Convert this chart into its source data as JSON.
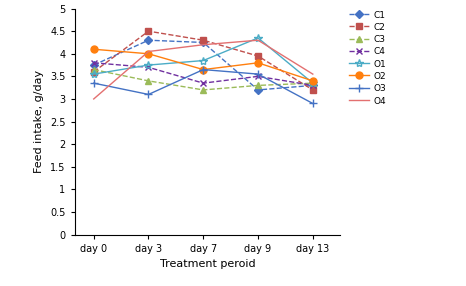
{
  "x_labels": [
    "day 0",
    "day 3",
    "day 7",
    "day 9",
    "day 13"
  ],
  "x_positions": [
    0,
    1,
    2,
    3,
    4
  ],
  "series_order": [
    "C1",
    "C2",
    "C3",
    "C4",
    "O1",
    "O2",
    "O3",
    "O4"
  ],
  "series": {
    "C1": {
      "values": [
        3.75,
        4.3,
        4.25,
        3.2,
        3.3
      ],
      "color": "#4472C4",
      "linestyle": "--",
      "marker": "D",
      "markersize": 4
    },
    "C2": {
      "values": [
        3.6,
        4.5,
        4.3,
        3.95,
        3.2
      ],
      "color": "#C0504D",
      "linestyle": "--",
      "marker": "s",
      "markersize": 4
    },
    "C3": {
      "values": [
        3.65,
        3.4,
        3.2,
        3.3,
        3.35
      ],
      "color": "#9BBB59",
      "linestyle": "--",
      "marker": "^",
      "markersize": 4
    },
    "C4": {
      "values": [
        3.8,
        3.7,
        3.35,
        3.5,
        3.3
      ],
      "color": "#7030A0",
      "linestyle": "--",
      "marker": "x",
      "markersize": 4
    },
    "O1": {
      "values": [
        3.55,
        3.75,
        3.85,
        4.35,
        3.35
      ],
      "color": "#4BACC6",
      "linestyle": "-",
      "marker": "*",
      "markersize": 6
    },
    "O2": {
      "values": [
        4.1,
        4.0,
        3.65,
        3.8,
        3.4
      ],
      "color": "#FF7F0E",
      "linestyle": "-",
      "marker": "o",
      "markersize": 5
    },
    "O3": {
      "values": [
        3.35,
        3.1,
        3.65,
        3.55,
        2.9
      ],
      "color": "#4472C4",
      "linestyle": "-",
      "marker": "+",
      "markersize": 6
    },
    "O4": {
      "values": [
        3.0,
        4.05,
        4.2,
        4.3,
        3.55
      ],
      "color": "#E37070",
      "linestyle": "-",
      "marker": "None",
      "markersize": 4
    }
  },
  "xlabel": "Treatment peroid",
  "ylabel": "Feed intake, g/day",
  "ylim": [
    0,
    5
  ],
  "yticks": [
    0,
    0.5,
    1.0,
    1.5,
    2.0,
    2.5,
    3.0,
    3.5,
    4.0,
    4.5,
    5
  ],
  "ytick_labels": [
    "0",
    "0.5",
    "1",
    "1.5",
    "2",
    "2.5",
    "3",
    "3.5",
    "4",
    "4.5",
    "5"
  ],
  "background_color": "#ffffff",
  "legend_fontsize": 6.5,
  "axis_fontsize": 8,
  "tick_fontsize": 7
}
